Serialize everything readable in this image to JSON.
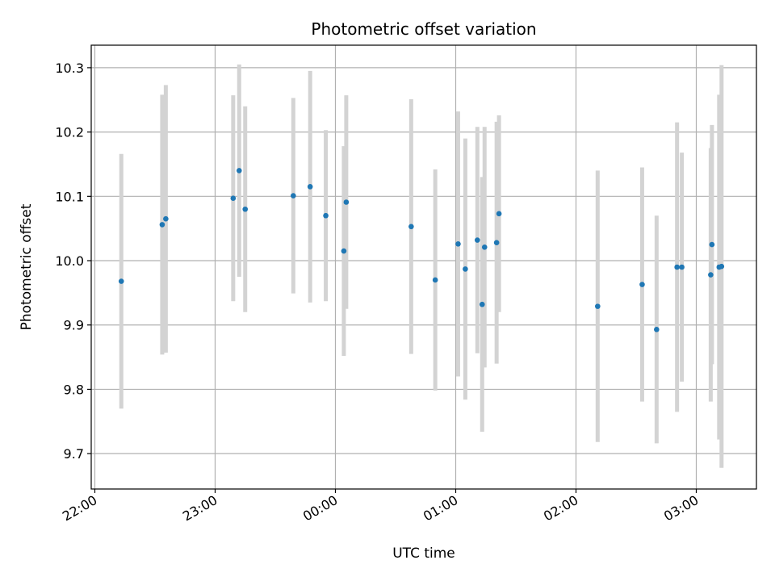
{
  "chart_data": {
    "type": "scatter",
    "title": "Photometric offset variation",
    "xlabel": "UTC time",
    "ylabel": "Photometric offset",
    "x_unit": "hours since 22:00 UTC",
    "xlim": [
      -0.03,
      5.5
    ],
    "ylim": [
      9.645,
      10.335
    ],
    "x_ticks": [
      {
        "value": 0,
        "label": "22:00"
      },
      {
        "value": 1,
        "label": "23:00"
      },
      {
        "value": 2,
        "label": "00:00"
      },
      {
        "value": 3,
        "label": "01:00"
      },
      {
        "value": 4,
        "label": "02:00"
      },
      {
        "value": 5,
        "label": "03:00"
      }
    ],
    "y_ticks": [
      {
        "value": 9.7,
        "label": "9.7"
      },
      {
        "value": 9.8,
        "label": "9.8"
      },
      {
        "value": 9.9,
        "label": "9.9"
      },
      {
        "value": 10.0,
        "label": "10.0"
      },
      {
        "value": 10.1,
        "label": "10.1"
      },
      {
        "value": 10.2,
        "label": "10.2"
      },
      {
        "value": 10.3,
        "label": "10.3"
      }
    ],
    "grid": true,
    "marker_color": "#1f77b4",
    "errorbar_color": "#d3d3d3",
    "points": [
      {
        "x": 0.22,
        "y": 9.968,
        "err": 0.198
      },
      {
        "x": 0.56,
        "y": 10.056,
        "err": 0.202
      },
      {
        "x": 0.59,
        "y": 10.065,
        "err": 0.208
      },
      {
        "x": 1.15,
        "y": 10.097,
        "err": 0.16
      },
      {
        "x": 1.2,
        "y": 10.14,
        "err": 0.165
      },
      {
        "x": 1.25,
        "y": 10.08,
        "err": 0.16
      },
      {
        "x": 1.65,
        "y": 10.101,
        "err": 0.152
      },
      {
        "x": 1.79,
        "y": 10.115,
        "err": 0.18
      },
      {
        "x": 1.92,
        "y": 10.07,
        "err": 0.133
      },
      {
        "x": 2.07,
        "y": 10.015,
        "err": 0.163
      },
      {
        "x": 2.09,
        "y": 10.091,
        "err": 0.166
      },
      {
        "x": 2.63,
        "y": 10.053,
        "err": 0.198
      },
      {
        "x": 2.83,
        "y": 9.97,
        "err": 0.172
      },
      {
        "x": 3.02,
        "y": 10.026,
        "err": 0.206
      },
      {
        "x": 3.08,
        "y": 9.987,
        "err": 0.203
      },
      {
        "x": 3.18,
        "y": 10.032,
        "err": 0.176
      },
      {
        "x": 3.22,
        "y": 9.932,
        "err": 0.198
      },
      {
        "x": 3.24,
        "y": 10.021,
        "err": 0.187
      },
      {
        "x": 3.34,
        "y": 10.028,
        "err": 0.188
      },
      {
        "x": 3.36,
        "y": 10.073,
        "err": 0.153
      },
      {
        "x": 4.18,
        "y": 9.929,
        "err": 0.211
      },
      {
        "x": 4.55,
        "y": 9.963,
        "err": 0.182
      },
      {
        "x": 4.67,
        "y": 9.893,
        "err": 0.177
      },
      {
        "x": 4.84,
        "y": 9.99,
        "err": 0.225
      },
      {
        "x": 4.88,
        "y": 9.99,
        "err": 0.178
      },
      {
        "x": 5.12,
        "y": 9.978,
        "err": 0.197
      },
      {
        "x": 5.13,
        "y": 10.025,
        "err": 0.186
      },
      {
        "x": 5.19,
        "y": 9.99,
        "err": 0.268
      },
      {
        "x": 5.21,
        "y": 9.991,
        "err": 0.313
      }
    ]
  }
}
